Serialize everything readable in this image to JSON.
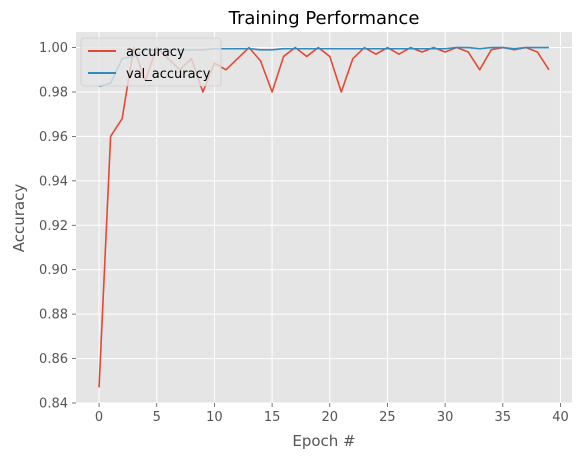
{
  "chart_data": {
    "type": "line",
    "title": "Training Performance",
    "xlabel": "Epoch #",
    "ylabel": "Accuracy",
    "xlim": [
      -2,
      41
    ],
    "ylim": [
      0.84,
      1.007
    ],
    "xticks": [
      0,
      5,
      10,
      15,
      20,
      25,
      30,
      35,
      40
    ],
    "yticks": [
      0.84,
      0.86,
      0.88,
      0.9,
      0.92,
      0.94,
      0.96,
      0.98,
      1.0
    ],
    "xtick_labels": [
      "0",
      "5",
      "10",
      "15",
      "20",
      "25",
      "30",
      "35",
      "40"
    ],
    "ytick_labels": [
      "0.84",
      "0.86",
      "0.88",
      "0.90",
      "0.92",
      "0.94",
      "0.96",
      "0.98",
      "1.00"
    ],
    "grid": true,
    "legend_position": "top-left",
    "x": [
      0,
      1,
      2,
      3,
      4,
      5,
      6,
      7,
      8,
      9,
      10,
      11,
      12,
      13,
      14,
      15,
      16,
      17,
      18,
      19,
      20,
      21,
      22,
      23,
      24,
      25,
      26,
      27,
      28,
      29,
      30,
      31,
      32,
      33,
      34,
      35,
      36,
      37,
      38,
      39
    ],
    "series": [
      {
        "name": "accuracy",
        "color": "#e24a33",
        "values": [
          0.847,
          0.96,
          0.968,
          1.0,
          0.985,
          1.0,
          0.995,
          0.99,
          0.995,
          0.98,
          0.993,
          0.99,
          0.995,
          1.0,
          0.994,
          0.98,
          0.996,
          1.0,
          0.996,
          1.0,
          0.996,
          0.98,
          0.995,
          1.0,
          0.997,
          1.0,
          0.997,
          1.0,
          0.998,
          1.0,
          0.998,
          1.0,
          0.998,
          0.99,
          0.999,
          1.0,
          0.999,
          1.0,
          0.998,
          0.99
        ]
      },
      {
        "name": "val_accuracy",
        "color": "#348abd",
        "values": [
          0.9825,
          0.984,
          0.995,
          0.996,
          0.999,
          0.999,
          0.999,
          0.999,
          0.999,
          0.999,
          0.9995,
          0.9995,
          0.9995,
          0.9995,
          0.999,
          0.999,
          0.9995,
          0.9995,
          0.9995,
          0.9995,
          0.9995,
          0.9995,
          0.9995,
          0.9995,
          0.9995,
          0.9995,
          0.9995,
          0.9995,
          0.9995,
          0.9995,
          0.9995,
          1.0,
          1.0,
          0.9995,
          1.0,
          1.0,
          0.9995,
          1.0,
          1.0,
          1.0
        ]
      }
    ]
  }
}
